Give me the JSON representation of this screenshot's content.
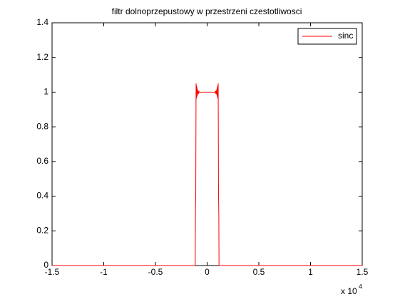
{
  "chart_data": {
    "type": "line",
    "title": "filtr dolnoprzepustowy w przestrzeni czestotliwosci",
    "x_multiplier": "x 10",
    "x_multiplier_exponent": "4",
    "x": [
      -1.5,
      -0.115,
      -0.113,
      -0.11,
      -0.107,
      -0.105,
      -0.103,
      -0.101,
      -0.099,
      -0.097,
      -0.095,
      -0.093,
      -0.09,
      -0.085,
      -0.08,
      -0.07,
      -0.05,
      0.05,
      0.07,
      0.08,
      0.085,
      0.09,
      0.093,
      0.095,
      0.097,
      0.099,
      0.101,
      0.103,
      0.105,
      0.107,
      0.11,
      0.113,
      0.115,
      1.5
    ],
    "series": [
      {
        "name": "sinc",
        "color": "#ff0000",
        "values": [
          0,
          0,
          0.3,
          0.42,
          1.05,
          0.96,
          1.04,
          0.97,
          1.03,
          0.975,
          1.02,
          0.985,
          1.01,
          0.99,
          1.005,
          0.997,
          1.0,
          1.0,
          0.997,
          1.005,
          0.99,
          1.01,
          0.985,
          1.02,
          0.975,
          1.03,
          0.97,
          1.04,
          0.96,
          1.05,
          0.42,
          0.3,
          0,
          0
        ]
      }
    ],
    "xlim": [
      -1.5,
      1.5
    ],
    "xticks": [
      -1.5,
      -1,
      -0.5,
      0,
      0.5,
      1,
      1.5
    ],
    "ylim": [
      0,
      1.4
    ],
    "yticks": [
      0,
      0.2,
      0.4,
      0.6,
      0.8,
      1,
      1.2,
      1.4
    ],
    "grid": false,
    "legend": "top-right"
  }
}
